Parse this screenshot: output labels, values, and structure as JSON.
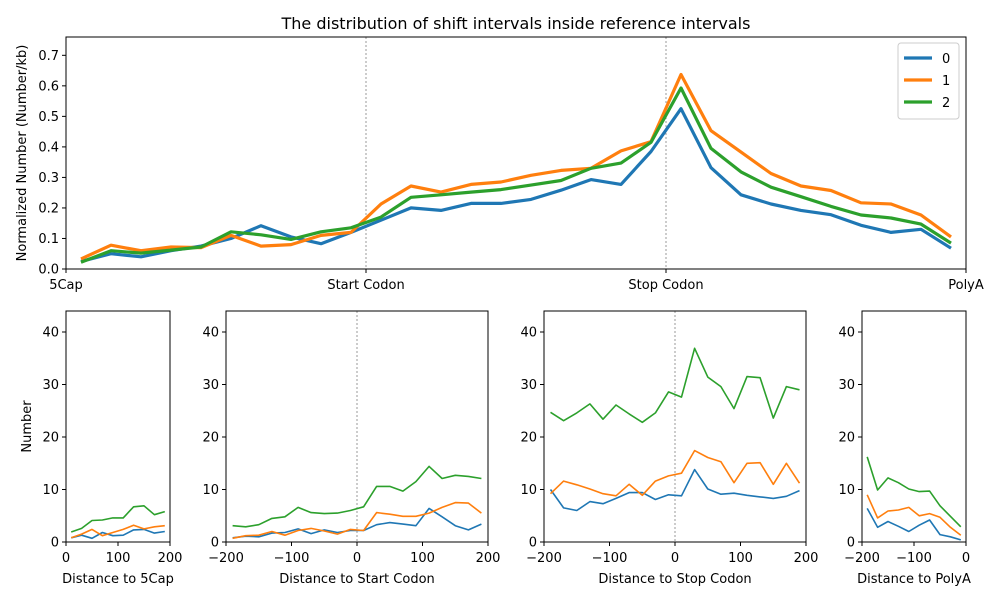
{
  "title": "The distribution of shift intervals inside reference intervals",
  "colors": {
    "s0": "#1f77b4",
    "s1": "#ff7f0e",
    "s2": "#2ca02c"
  },
  "chart_data": [
    {
      "type": "line",
      "title": "The distribution of shift intervals inside reference intervals",
      "xlabel": "",
      "ylabel": "Normalized Number (Number/kb)",
      "x_ticks": [
        "5Cap",
        "Start Codon",
        "Stop Codon",
        "PolyA"
      ],
      "x_tick_values": [
        0,
        10,
        20,
        30
      ],
      "xlim": [
        0,
        30
      ],
      "ylim": [
        0,
        0.76
      ],
      "y_ticks": [
        0.0,
        0.1,
        0.2,
        0.3,
        0.4,
        0.5,
        0.6,
        0.7
      ],
      "vlines": [
        10,
        20
      ],
      "legend": {
        "position": "top-right",
        "entries": [
          "0",
          "1",
          "2"
        ]
      },
      "x": [
        0.5,
        1.5,
        2.5,
        3.5,
        4.5,
        5.5,
        6.5,
        7.5,
        8.5,
        9.5,
        10.5,
        11.5,
        12.5,
        13.5,
        14.5,
        15.5,
        16.5,
        17.5,
        18.5,
        19.5,
        20.5,
        21.5,
        22.5,
        23.5,
        24.5,
        25.5,
        26.5,
        27.5,
        28.5,
        29.5
      ],
      "series": [
        {
          "name": "0",
          "values": [
            0.025,
            0.05,
            0.04,
            0.06,
            0.075,
            0.1,
            0.142,
            0.105,
            0.083,
            0.12,
            0.16,
            0.2,
            0.192,
            0.215,
            0.215,
            0.228,
            0.258,
            0.293,
            0.277,
            0.385,
            0.525,
            0.332,
            0.243,
            0.213,
            0.192,
            0.178,
            0.143,
            0.12,
            0.13,
            0.068
          ]
        },
        {
          "name": "1",
          "values": [
            0.033,
            0.078,
            0.06,
            0.072,
            0.07,
            0.11,
            0.075,
            0.08,
            0.11,
            0.12,
            0.213,
            0.272,
            0.252,
            0.277,
            0.285,
            0.307,
            0.323,
            0.33,
            0.387,
            0.417,
            0.637,
            0.453,
            0.383,
            0.313,
            0.272,
            0.257,
            0.217,
            0.213,
            0.177,
            0.105
          ]
        },
        {
          "name": "2",
          "values": [
            0.022,
            0.06,
            0.052,
            0.062,
            0.072,
            0.122,
            0.112,
            0.097,
            0.122,
            0.135,
            0.17,
            0.235,
            0.243,
            0.252,
            0.26,
            0.275,
            0.29,
            0.33,
            0.347,
            0.415,
            0.593,
            0.395,
            0.318,
            0.268,
            0.237,
            0.205,
            0.177,
            0.167,
            0.147,
            0.085
          ]
        }
      ]
    },
    {
      "type": "line",
      "xlabel": "Distance to 5Cap",
      "ylabel": "Number",
      "xlim": [
        0,
        200
      ],
      "ylim": [
        0,
        44
      ],
      "x_ticks": [
        0,
        100,
        200
      ],
      "y_ticks": [
        0,
        10,
        20,
        30,
        40
      ],
      "x": [
        10,
        30,
        50,
        70,
        90,
        110,
        130,
        150,
        170,
        190
      ],
      "series": [
        {
          "name": "0",
          "values": [
            0.8,
            1.3,
            0.7,
            1.8,
            1.2,
            1.3,
            2.3,
            2.4,
            1.7,
            2.0
          ]
        },
        {
          "name": "1",
          "values": [
            0.8,
            1.5,
            2.4,
            1.2,
            1.8,
            2.4,
            3.2,
            2.5,
            2.9,
            3.1
          ]
        },
        {
          "name": "2",
          "values": [
            1.9,
            2.6,
            4.1,
            4.2,
            4.6,
            4.6,
            6.7,
            6.9,
            5.2,
            5.8
          ]
        }
      ]
    },
    {
      "type": "line",
      "xlabel": "Distance to Start Codon",
      "xlim": [
        -200,
        200
      ],
      "ylim": [
        0,
        44
      ],
      "x_ticks": [
        -200,
        -100,
        0,
        100,
        200
      ],
      "y_ticks": [
        0,
        10,
        20,
        30,
        40
      ],
      "vlines": [
        0
      ],
      "x": [
        -190,
        -170,
        -150,
        -130,
        -110,
        -90,
        -70,
        -50,
        -30,
        -10,
        10,
        30,
        50,
        70,
        90,
        110,
        130,
        150,
        170,
        190
      ],
      "series": [
        {
          "name": "0",
          "values": [
            0.8,
            1.1,
            1.0,
            1.7,
            1.8,
            2.5,
            1.6,
            2.3,
            1.8,
            2.2,
            2.2,
            3.3,
            3.7,
            3.4,
            3.1,
            6.4,
            4.8,
            3.1,
            2.3,
            3.4
          ]
        },
        {
          "name": "1",
          "values": [
            0.7,
            1.2,
            1.3,
            2.0,
            1.3,
            2.2,
            2.6,
            2.1,
            1.5,
            2.4,
            2.2,
            5.6,
            5.3,
            4.9,
            4.9,
            5.5,
            6.6,
            7.5,
            7.4,
            5.5
          ]
        },
        {
          "name": "2",
          "values": [
            3.1,
            2.9,
            3.3,
            4.5,
            4.8,
            6.6,
            5.6,
            5.4,
            5.5,
            6.0,
            6.7,
            10.6,
            10.6,
            9.7,
            11.5,
            14.4,
            12.1,
            12.7,
            12.5,
            12.1
          ]
        }
      ]
    },
    {
      "type": "line",
      "xlabel": "Distance to Stop Codon",
      "xlim": [
        -200,
        200
      ],
      "ylim": [
        0,
        44
      ],
      "x_ticks": [
        -200,
        -100,
        0,
        100,
        200
      ],
      "y_ticks": [
        0,
        10,
        20,
        30,
        40
      ],
      "vlines": [
        0
      ],
      "x": [
        -190,
        -170,
        -150,
        -130,
        -110,
        -90,
        -70,
        -50,
        -30,
        -10,
        10,
        30,
        50,
        70,
        90,
        110,
        130,
        150,
        170,
        190
      ],
      "series": [
        {
          "name": "0",
          "values": [
            10.0,
            6.5,
            6.0,
            7.7,
            7.3,
            8.3,
            9.4,
            9.4,
            8.1,
            9.0,
            8.8,
            13.8,
            10.1,
            9.1,
            9.3,
            8.9,
            8.6,
            8.3,
            8.7,
            9.8
          ]
        },
        {
          "name": "1",
          "values": [
            9.2,
            11.6,
            10.9,
            10.1,
            9.2,
            8.8,
            11.0,
            8.9,
            11.6,
            12.6,
            13.1,
            17.4,
            16.1,
            15.3,
            11.3,
            15.0,
            15.1,
            11.0,
            15.0,
            11.2
          ]
        },
        {
          "name": "2",
          "values": [
            24.7,
            23.1,
            24.6,
            26.3,
            23.4,
            26.1,
            24.4,
            22.8,
            24.6,
            28.6,
            27.6,
            36.9,
            31.4,
            29.6,
            25.4,
            31.5,
            31.3,
            23.6,
            29.6,
            29.0
          ]
        }
      ]
    },
    {
      "type": "line",
      "xlabel": "Distance to PolyA",
      "xlim": [
        -200,
        0
      ],
      "ylim": [
        0,
        44
      ],
      "x_ticks": [
        -200,
        -100,
        0
      ],
      "y_ticks": [
        0,
        10,
        20,
        30,
        40
      ],
      "x": [
        -190,
        -170,
        -150,
        -130,
        -110,
        -90,
        -70,
        -50,
        -30,
        -10
      ],
      "series": [
        {
          "name": "0",
          "values": [
            6.4,
            2.8,
            3.9,
            3.0,
            2.0,
            3.2,
            4.2,
            1.4,
            1.0,
            0.4
          ]
        },
        {
          "name": "1",
          "values": [
            9.0,
            4.6,
            5.9,
            6.1,
            6.6,
            5.0,
            5.4,
            4.7,
            2.8,
            1.3
          ]
        },
        {
          "name": "2",
          "values": [
            16.2,
            9.9,
            12.2,
            11.3,
            10.1,
            9.6,
            9.7,
            6.9,
            4.9,
            2.9
          ]
        }
      ]
    }
  ]
}
